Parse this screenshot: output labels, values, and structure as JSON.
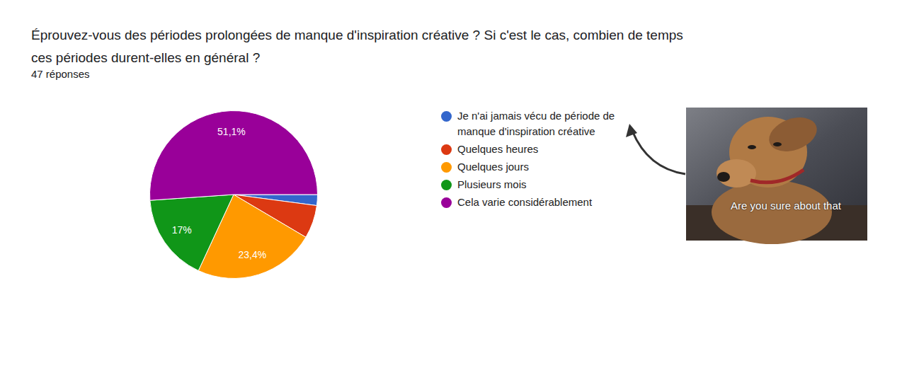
{
  "chart_data": {
    "type": "pie",
    "title": "Éprouvez-vous des périodes prolongées de manque d'inspiration créative ? Si c'est le cas, combien de temps ces périodes durent-elles en général ?",
    "subtitle": "47 réponses",
    "categories": [
      "Je n'ai jamais vécu de période de manque d'inspiration créative",
      "Quelques heures",
      "Quelques jours",
      "Plusieurs mois",
      "Cela varie considérablement"
    ],
    "values": [
      2.1,
      6.4,
      23.4,
      17,
      51.1
    ],
    "value_labels": [
      null,
      null,
      "23,4%",
      "17%",
      "51,1%"
    ],
    "colors": [
      "#3366cc",
      "#dc3912",
      "#ff9900",
      "#109618",
      "#990099"
    ],
    "data_labels": true,
    "annotations": [
      "Are you sure about that"
    ]
  }
}
